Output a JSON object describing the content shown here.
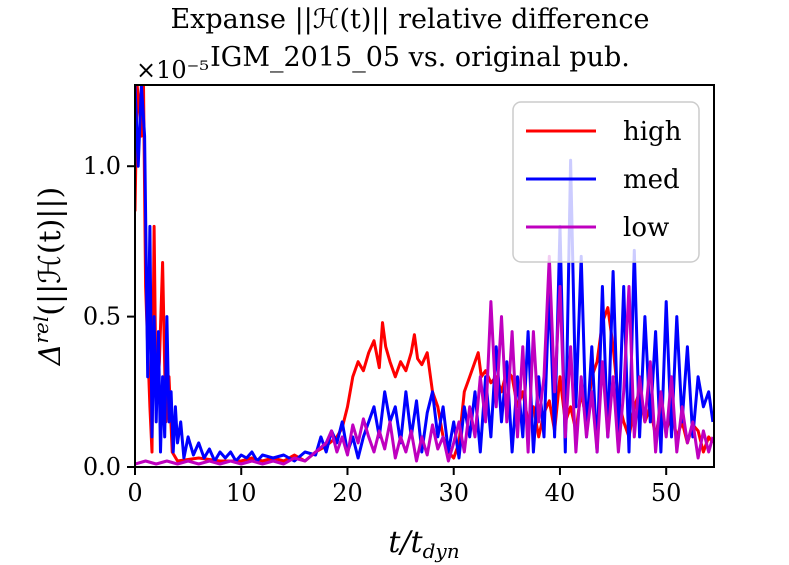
{
  "chart_data": {
    "type": "line",
    "title_line1": "Expanse ||ℋ(t)|| relative difference",
    "title_line2": "IGM_2015_05 vs. original pub.",
    "xlabel": "t/t",
    "xlabel_sub": "dyn",
    "ylabel": "Δ",
    "ylabel_sup": "rel",
    "ylabel_rest": "(||ℋ(t)||)",
    "scale_label": "×10⁻⁵",
    "xlim": [
      0,
      54.5
    ],
    "ylim": [
      0,
      1.27
    ],
    "x_ticks": [
      0,
      10,
      20,
      30,
      40,
      50
    ],
    "x_tick_labels": [
      "0",
      "10",
      "20",
      "30",
      "40",
      "50"
    ],
    "y_ticks": [
      0.0,
      0.5,
      1.0
    ],
    "y_tick_labels": [
      "0.0",
      "0.5",
      "1.0"
    ],
    "legend_position": "top-right",
    "series": [
      {
        "name": "high",
        "color": "#ff0000",
        "points": [
          [
            0,
            0.85
          ],
          [
            0.2,
            1.27
          ],
          [
            0.4,
            1.2
          ],
          [
            0.6,
            1.1
          ],
          [
            0.8,
            1.27
          ],
          [
            1.0,
            0.6
          ],
          [
            1.2,
            0.4
          ],
          [
            1.4,
            0.2
          ],
          [
            1.6,
            0.05
          ],
          [
            1.8,
            0.8
          ],
          [
            2.0,
            0.2
          ],
          [
            2.3,
            0.35
          ],
          [
            2.6,
            0.68
          ],
          [
            2.9,
            0.15
          ],
          [
            3.2,
            0.3
          ],
          [
            3.5,
            0.05
          ],
          [
            4,
            0.02
          ],
          [
            6,
            0.03
          ],
          [
            8,
            0.02
          ],
          [
            10,
            0.02
          ],
          [
            11,
            0.03
          ],
          [
            12,
            0.02
          ],
          [
            13,
            0.03
          ],
          [
            14,
            0.02
          ],
          [
            15,
            0.04
          ],
          [
            16,
            0.02
          ],
          [
            17,
            0.05
          ],
          [
            18,
            0.07
          ],
          [
            19,
            0.1
          ],
          [
            19.5,
            0.13
          ],
          [
            20,
            0.2
          ],
          [
            20.5,
            0.3
          ],
          [
            21,
            0.35
          ],
          [
            21.5,
            0.32
          ],
          [
            22,
            0.38
          ],
          [
            22.5,
            0.42
          ],
          [
            23,
            0.33
          ],
          [
            23.3,
            0.48
          ],
          [
            23.6,
            0.4
          ],
          [
            24,
            0.35
          ],
          [
            24.5,
            0.3
          ],
          [
            25,
            0.35
          ],
          [
            25.5,
            0.32
          ],
          [
            26,
            0.38
          ],
          [
            26.3,
            0.44
          ],
          [
            26.6,
            0.36
          ],
          [
            27,
            0.34
          ],
          [
            27.5,
            0.38
          ],
          [
            28,
            0.25
          ],
          [
            28.5,
            0.2
          ],
          [
            29,
            0.1
          ],
          [
            29.5,
            0.05
          ],
          [
            30,
            0.03
          ],
          [
            30.5,
            0.08
          ],
          [
            31,
            0.25
          ],
          [
            31.5,
            0.3
          ],
          [
            32,
            0.35
          ],
          [
            32.3,
            0.38
          ],
          [
            32.6,
            0.3
          ],
          [
            33,
            0.32
          ],
          [
            33.5,
            0.28
          ],
          [
            34,
            0.3
          ],
          [
            34.5,
            0.25
          ],
          [
            35,
            0.32
          ],
          [
            35.5,
            0.3
          ],
          [
            36,
            0.2
          ],
          [
            36.5,
            0.25
          ],
          [
            37,
            0.15
          ],
          [
            37.5,
            0.2
          ],
          [
            38,
            0.1
          ],
          [
            38.5,
            0.18
          ],
          [
            39,
            0.22
          ],
          [
            39.5,
            0.12
          ],
          [
            40,
            0.3
          ],
          [
            40.5,
            0.15
          ],
          [
            41,
            0.2
          ],
          [
            41.5,
            0.12
          ],
          [
            42,
            0.25
          ],
          [
            42.5,
            0.15
          ],
          [
            43,
            0.3
          ],
          [
            43.5,
            0.35
          ],
          [
            44,
            0.48
          ],
          [
            44.5,
            0.53
          ],
          [
            45,
            0.4
          ],
          [
            45.5,
            0.22
          ],
          [
            46,
            0.15
          ],
          [
            46.5,
            0.1
          ],
          [
            47,
            0.2
          ],
          [
            47.5,
            0.25
          ],
          [
            48,
            0.15
          ],
          [
            48.5,
            0.2
          ],
          [
            49,
            0.1
          ],
          [
            49.5,
            0.2
          ],
          [
            50,
            0.12
          ],
          [
            50.5,
            0.18
          ],
          [
            51,
            0.1
          ],
          [
            51.5,
            0.15
          ],
          [
            52,
            0.08
          ],
          [
            52.5,
            0.14
          ],
          [
            53,
            0.12
          ],
          [
            53.5,
            0.05
          ],
          [
            54,
            0.1
          ],
          [
            54.4,
            0.08
          ]
        ]
      },
      {
        "name": "med",
        "color": "#0000ff",
        "points": [
          [
            0,
            1.27
          ],
          [
            0.3,
            1.0
          ],
          [
            0.6,
            1.27
          ],
          [
            0.9,
            1.1
          ],
          [
            1.2,
            0.3
          ],
          [
            1.4,
            0.8
          ],
          [
            1.6,
            0.1
          ],
          [
            1.8,
            0.5
          ],
          [
            2.0,
            0.15
          ],
          [
            2.2,
            0.45
          ],
          [
            2.4,
            0.05
          ],
          [
            2.6,
            0.3
          ],
          [
            2.8,
            0.1
          ],
          [
            3.0,
            0.5
          ],
          [
            3.2,
            0.15
          ],
          [
            3.4,
            0.25
          ],
          [
            3.6,
            0.05
          ],
          [
            3.8,
            0.2
          ],
          [
            4.0,
            0.08
          ],
          [
            4.3,
            0.15
          ],
          [
            4.6,
            0.03
          ],
          [
            5,
            0.1
          ],
          [
            5.5,
            0.04
          ],
          [
            6,
            0.08
          ],
          [
            6.5,
            0.03
          ],
          [
            7,
            0.06
          ],
          [
            7.5,
            0.02
          ],
          [
            8,
            0.05
          ],
          [
            8.5,
            0.03
          ],
          [
            9,
            0.05
          ],
          [
            9.5,
            0.02
          ],
          [
            10,
            0.04
          ],
          [
            10.5,
            0.03
          ],
          [
            11,
            0.05
          ],
          [
            11.5,
            0.02
          ],
          [
            12,
            0.04
          ],
          [
            13,
            0.03
          ],
          [
            14,
            0.04
          ],
          [
            15,
            0.02
          ],
          [
            16,
            0.05
          ],
          [
            17,
            0.04
          ],
          [
            17.5,
            0.1
          ],
          [
            18,
            0.05
          ],
          [
            18.5,
            0.12
          ],
          [
            19,
            0.08
          ],
          [
            19.5,
            0.15
          ],
          [
            20,
            0.05
          ],
          [
            20.5,
            0.1
          ],
          [
            21,
            0.03
          ],
          [
            21.5,
            0.1
          ],
          [
            22,
            0.15
          ],
          [
            22.5,
            0.2
          ],
          [
            23,
            0.1
          ],
          [
            23.5,
            0.25
          ],
          [
            24,
            0.15
          ],
          [
            24.5,
            0.2
          ],
          [
            25,
            0.08
          ],
          [
            25.5,
            0.25
          ],
          [
            26,
            0.1
          ],
          [
            26.5,
            0.22
          ],
          [
            27,
            0.05
          ],
          [
            27.5,
            0.18
          ],
          [
            28,
            0.25
          ],
          [
            28.5,
            0.1
          ],
          [
            29,
            0.2
          ],
          [
            29.5,
            0.05
          ],
          [
            30,
            0.15
          ],
          [
            30.5,
            0.03
          ],
          [
            31,
            0.2
          ],
          [
            31.5,
            0.1
          ],
          [
            32,
            0.25
          ],
          [
            32.5,
            0.05
          ],
          [
            33,
            0.3
          ],
          [
            33.5,
            0.1
          ],
          [
            34,
            0.4
          ],
          [
            34.5,
            0.15
          ],
          [
            35,
            0.35
          ],
          [
            35.5,
            0.05
          ],
          [
            36,
            0.3
          ],
          [
            36.5,
            0.1
          ],
          [
            37,
            0.45
          ],
          [
            37.5,
            0.05
          ],
          [
            38,
            0.3
          ],
          [
            38.5,
            0.1
          ],
          [
            39,
            0.6
          ],
          [
            39.5,
            0.1
          ],
          [
            40,
            0.8
          ],
          [
            40.5,
            0.05
          ],
          [
            41,
            1.02
          ],
          [
            41.5,
            0.2
          ],
          [
            42,
            0.7
          ],
          [
            42.5,
            0.1
          ],
          [
            43,
            0.4
          ],
          [
            43.5,
            0.05
          ],
          [
            44,
            0.6
          ],
          [
            44.5,
            0.1
          ],
          [
            45,
            0.65
          ],
          [
            45.5,
            0.1
          ],
          [
            46,
            0.6
          ],
          [
            46.5,
            0.05
          ],
          [
            47,
            0.72
          ],
          [
            47.5,
            0.1
          ],
          [
            48,
            0.5
          ],
          [
            48.5,
            0.15
          ],
          [
            49,
            0.45
          ],
          [
            49.5,
            0.05
          ],
          [
            50,
            0.55
          ],
          [
            50.5,
            0.1
          ],
          [
            51,
            0.5
          ],
          [
            51.5,
            0.15
          ],
          [
            52,
            0.4
          ],
          [
            52.5,
            0.1
          ],
          [
            53,
            0.3
          ],
          [
            53.5,
            0.2
          ],
          [
            54,
            0.25
          ],
          [
            54.4,
            0.15
          ]
        ]
      },
      {
        "name": "low",
        "color": "#bf00bf",
        "points": [
          [
            0,
            0.01
          ],
          [
            1,
            0.02
          ],
          [
            2,
            0.01
          ],
          [
            3,
            0.02
          ],
          [
            4,
            0.01
          ],
          [
            5,
            0.02
          ],
          [
            6,
            0.01
          ],
          [
            7,
            0.02
          ],
          [
            8,
            0.01
          ],
          [
            9,
            0.02
          ],
          [
            10,
            0.01
          ],
          [
            11,
            0.02
          ],
          [
            12,
            0.01
          ],
          [
            13,
            0.02
          ],
          [
            14,
            0.01
          ],
          [
            15,
            0.03
          ],
          [
            16,
            0.02
          ],
          [
            17,
            0.05
          ],
          [
            18,
            0.08
          ],
          [
            18.5,
            0.12
          ],
          [
            19,
            0.05
          ],
          [
            19.5,
            0.1
          ],
          [
            20,
            0.04
          ],
          [
            20.5,
            0.14
          ],
          [
            21,
            0.08
          ],
          [
            21.5,
            0.16
          ],
          [
            22,
            0.1
          ],
          [
            22.5,
            0.05
          ],
          [
            23,
            0.12
          ],
          [
            23.5,
            0.06
          ],
          [
            24,
            0.15
          ],
          [
            24.5,
            0.03
          ],
          [
            25,
            0.1
          ],
          [
            25.5,
            0.05
          ],
          [
            26,
            0.12
          ],
          [
            26.5,
            0.02
          ],
          [
            27,
            0.1
          ],
          [
            27.5,
            0.04
          ],
          [
            28,
            0.14
          ],
          [
            28.5,
            0.06
          ],
          [
            29,
            0.1
          ],
          [
            29.5,
            0.02
          ],
          [
            30,
            0.08
          ],
          [
            30.5,
            0.15
          ],
          [
            31,
            0.05
          ],
          [
            31.5,
            0.2
          ],
          [
            32,
            0.1
          ],
          [
            32.5,
            0.3
          ],
          [
            33,
            0.15
          ],
          [
            33.5,
            0.55
          ],
          [
            34,
            0.2
          ],
          [
            34.5,
            0.5
          ],
          [
            35,
            0.15
          ],
          [
            35.5,
            0.45
          ],
          [
            36,
            0.1
          ],
          [
            36.5,
            0.4
          ],
          [
            37,
            0.05
          ],
          [
            37.5,
            0.45
          ],
          [
            38,
            0.15
          ],
          [
            38.5,
            0.3
          ],
          [
            39,
            0.7
          ],
          [
            39.5,
            0.25
          ],
          [
            40,
            0.6
          ],
          [
            40.5,
            0.1
          ],
          [
            41,
            0.4
          ],
          [
            41.5,
            0.05
          ],
          [
            42,
            0.3
          ],
          [
            42.5,
            0.1
          ],
          [
            43,
            0.25
          ],
          [
            43.5,
            0.05
          ],
          [
            44,
            0.35
          ],
          [
            44.5,
            0.1
          ],
          [
            45,
            0.3
          ],
          [
            45.5,
            0.05
          ],
          [
            46,
            0.25
          ],
          [
            46.5,
            0.6
          ],
          [
            47,
            0.1
          ],
          [
            47.5,
            0.3
          ],
          [
            48,
            0.15
          ],
          [
            48.5,
            0.35
          ],
          [
            49,
            0.05
          ],
          [
            49.5,
            0.25
          ],
          [
            50,
            0.1
          ],
          [
            50.5,
            0.3
          ],
          [
            51,
            0.05
          ],
          [
            51.5,
            0.2
          ],
          [
            52,
            0.08
          ],
          [
            52.5,
            0.15
          ],
          [
            53,
            0.03
          ],
          [
            53.5,
            0.12
          ],
          [
            54,
            0.05
          ],
          [
            54.4,
            0.1
          ]
        ]
      }
    ]
  }
}
